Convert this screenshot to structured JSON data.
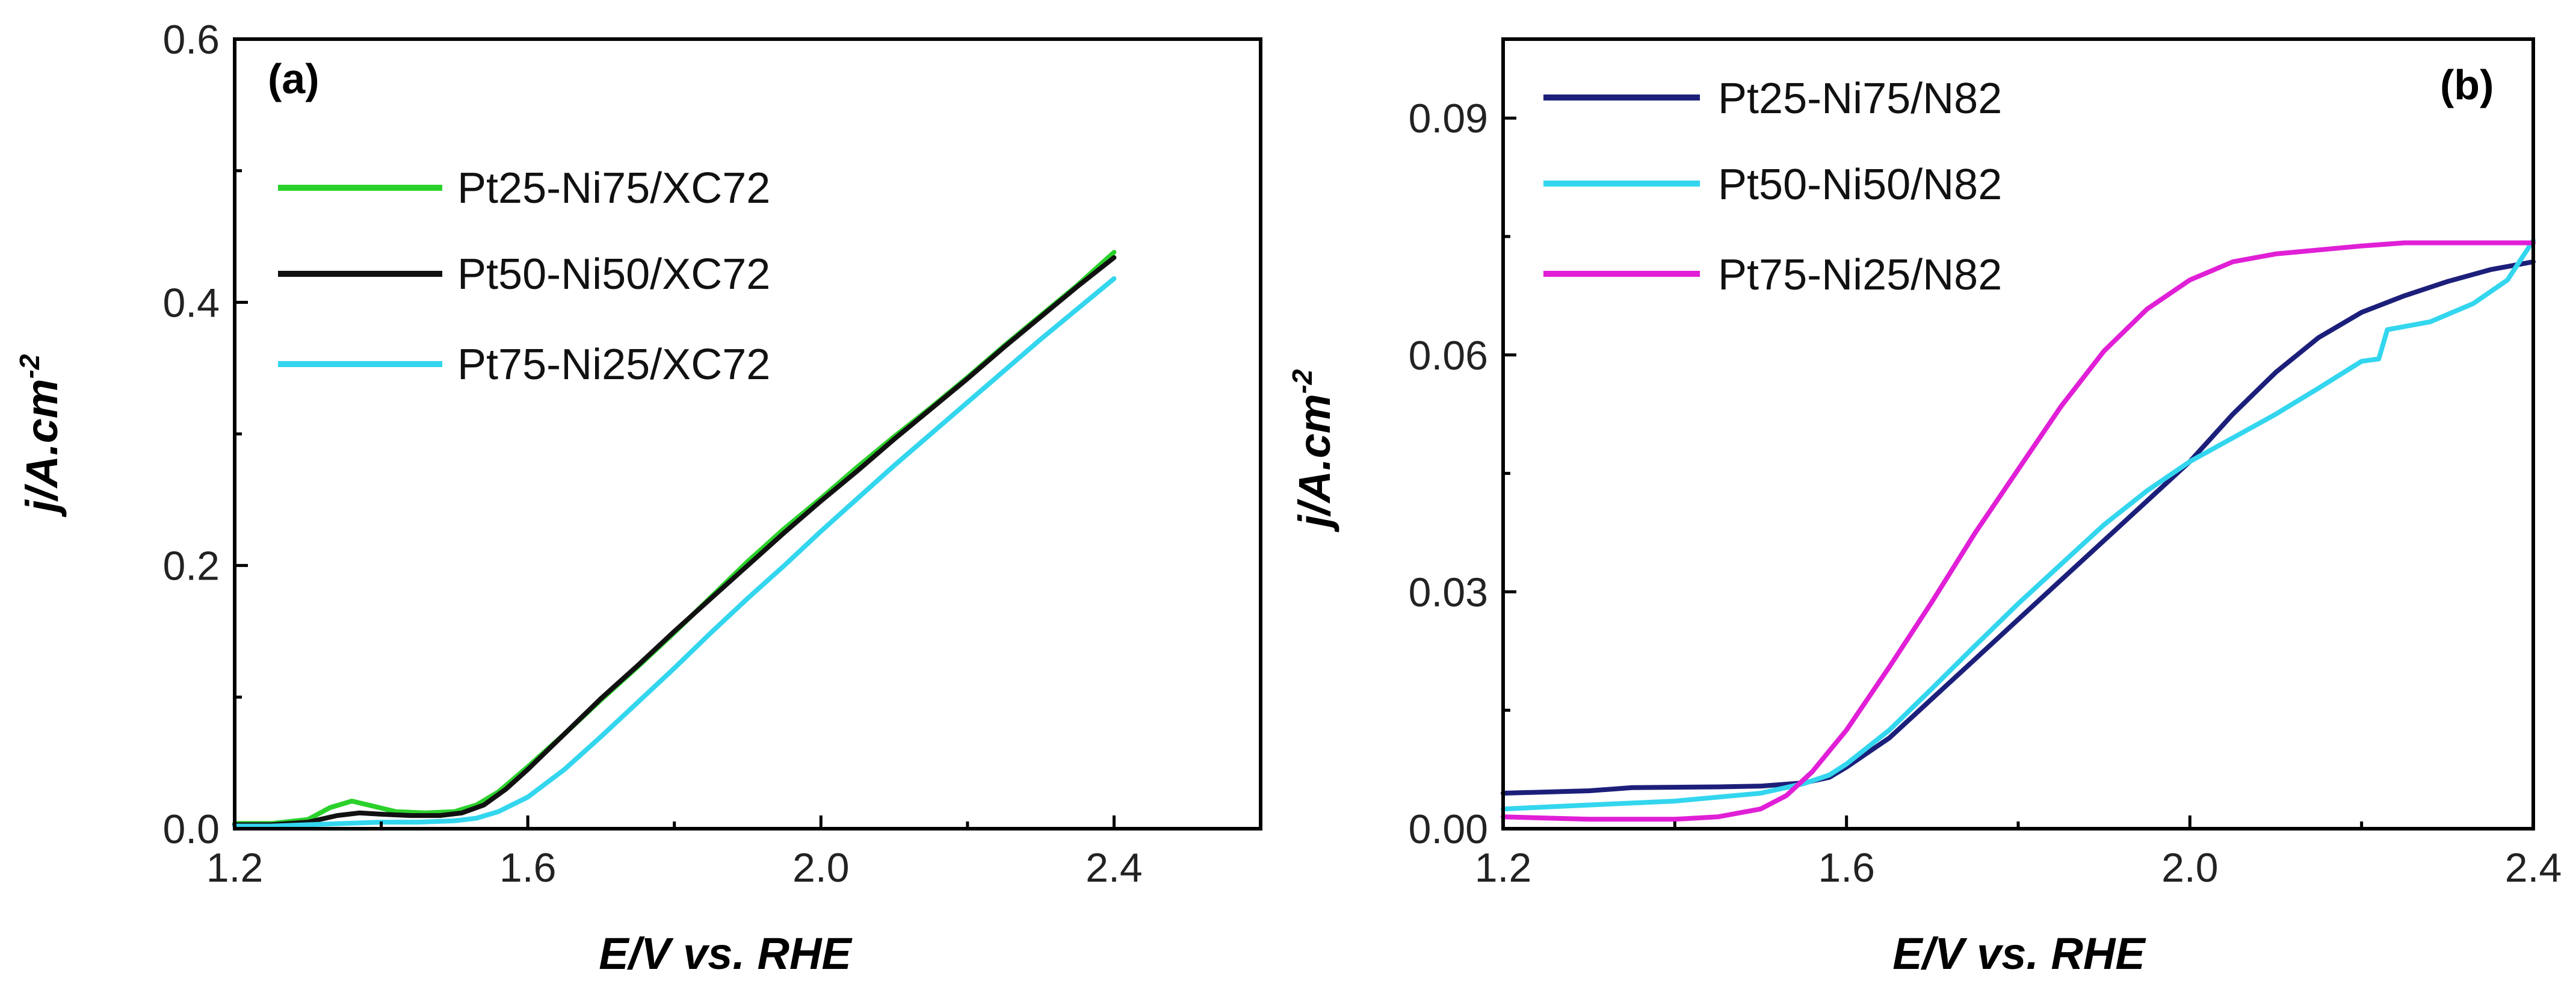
{
  "chart_data": [
    {
      "type": "line",
      "panel_label": "(a)",
      "xlabel": "E/V vs. RHE",
      "ylabel_main": "j/A.cm",
      "ylabel_sup": "-2",
      "xlim": [
        1.2,
        2.6
      ],
      "ylim": [
        0.0,
        0.6
      ],
      "xticks": [
        1.2,
        1.6,
        2.0,
        2.4
      ],
      "xtick_labels": [
        "1.2",
        "1.6",
        "2.0",
        "2.4"
      ],
      "yticks": [
        0.0,
        0.2,
        0.4,
        0.6
      ],
      "ytick_labels": [
        "0.0",
        "0.2",
        "0.4",
        "0.6"
      ],
      "legend_position": "top-left",
      "series": [
        {
          "name": "Pt25-Ni75/XC72",
          "color": "#2bd12b",
          "points": [
            [
              1.2,
              0.004
            ],
            [
              1.25,
              0.004
            ],
            [
              1.3,
              0.007
            ],
            [
              1.33,
              0.016
            ],
            [
              1.36,
              0.021
            ],
            [
              1.39,
              0.017
            ],
            [
              1.42,
              0.013
            ],
            [
              1.46,
              0.012
            ],
            [
              1.5,
              0.013
            ],
            [
              1.53,
              0.018
            ],
            [
              1.56,
              0.028
            ],
            [
              1.6,
              0.047
            ],
            [
              1.65,
              0.072
            ],
            [
              1.7,
              0.098
            ],
            [
              1.75,
              0.123
            ],
            [
              1.8,
              0.149
            ],
            [
              1.85,
              0.176
            ],
            [
              1.9,
              0.203
            ],
            [
              1.95,
              0.228
            ],
            [
              2.0,
              0.251
            ],
            [
              2.05,
              0.275
            ],
            [
              2.1,
              0.298
            ],
            [
              2.15,
              0.32
            ],
            [
              2.2,
              0.343
            ],
            [
              2.25,
              0.367
            ],
            [
              2.3,
              0.39
            ],
            [
              2.35,
              0.413
            ],
            [
              2.4,
              0.438
            ]
          ]
        },
        {
          "name": "Pt50-Ni50/XC72",
          "color": "#111111",
          "points": [
            [
              1.2,
              0.003
            ],
            [
              1.25,
              0.003
            ],
            [
              1.3,
              0.005
            ],
            [
              1.34,
              0.01
            ],
            [
              1.37,
              0.012
            ],
            [
              1.4,
              0.011
            ],
            [
              1.44,
              0.01
            ],
            [
              1.48,
              0.01
            ],
            [
              1.51,
              0.012
            ],
            [
              1.54,
              0.018
            ],
            [
              1.57,
              0.03
            ],
            [
              1.6,
              0.045
            ],
            [
              1.65,
              0.072
            ],
            [
              1.7,
              0.099
            ],
            [
              1.75,
              0.124
            ],
            [
              1.8,
              0.15
            ],
            [
              1.85,
              0.175
            ],
            [
              1.9,
              0.2
            ],
            [
              1.95,
              0.225
            ],
            [
              2.0,
              0.249
            ],
            [
              2.05,
              0.272
            ],
            [
              2.1,
              0.296
            ],
            [
              2.15,
              0.319
            ],
            [
              2.2,
              0.342
            ],
            [
              2.25,
              0.366
            ],
            [
              2.3,
              0.389
            ],
            [
              2.35,
              0.412
            ],
            [
              2.4,
              0.434
            ]
          ]
        },
        {
          "name": "Pt75-Ni25/XC72",
          "color": "#33d6ee",
          "points": [
            [
              1.2,
              0.002
            ],
            [
              1.25,
              0.002
            ],
            [
              1.3,
              0.003
            ],
            [
              1.35,
              0.004
            ],
            [
              1.4,
              0.005
            ],
            [
              1.45,
              0.005
            ],
            [
              1.5,
              0.006
            ],
            [
              1.53,
              0.008
            ],
            [
              1.56,
              0.013
            ],
            [
              1.6,
              0.024
            ],
            [
              1.65,
              0.045
            ],
            [
              1.7,
              0.07
            ],
            [
              1.75,
              0.096
            ],
            [
              1.8,
              0.122
            ],
            [
              1.85,
              0.149
            ],
            [
              1.9,
              0.175
            ],
            [
              1.95,
              0.2
            ],
            [
              2.0,
              0.226
            ],
            [
              2.05,
              0.251
            ],
            [
              2.1,
              0.276
            ],
            [
              2.15,
              0.3
            ],
            [
              2.2,
              0.324
            ],
            [
              2.25,
              0.348
            ],
            [
              2.3,
              0.372
            ],
            [
              2.35,
              0.395
            ],
            [
              2.4,
              0.418
            ]
          ]
        }
      ]
    },
    {
      "type": "line",
      "panel_label": "(b)",
      "xlabel": "E/V vs. RHE",
      "ylabel_main": "j/A.cm",
      "ylabel_sup": "-2",
      "xlim": [
        1.2,
        2.4
      ],
      "ylim": [
        0.0,
        0.1
      ],
      "xticks": [
        1.2,
        1.6,
        2.0,
        2.4
      ],
      "xtick_labels": [
        "1.2",
        "1.6",
        "2.0",
        "2.4"
      ],
      "yticks": [
        0.0,
        0.03,
        0.06,
        0.09
      ],
      "ytick_labels": [
        "0.00",
        "0.03",
        "0.06",
        "0.09"
      ],
      "legend_position": "top-left",
      "series": [
        {
          "name": "Pt25-Ni75/N82",
          "color": "#1c1f7a",
          "points": [
            [
              1.2,
              0.0045
            ],
            [
              1.3,
              0.0048
            ],
            [
              1.35,
              0.0052
            ],
            [
              1.45,
              0.0053
            ],
            [
              1.5,
              0.0054
            ],
            [
              1.55,
              0.0058
            ],
            [
              1.58,
              0.0065
            ],
            [
              1.6,
              0.0078
            ],
            [
              1.65,
              0.0115
            ],
            [
              1.7,
              0.0165
            ],
            [
              1.75,
              0.0215
            ],
            [
              1.8,
              0.0265
            ],
            [
              1.85,
              0.0315
            ],
            [
              1.9,
              0.0365
            ],
            [
              1.95,
              0.0415
            ],
            [
              2.0,
              0.0465
            ],
            [
              2.05,
              0.0525
            ],
            [
              2.1,
              0.0578
            ],
            [
              2.15,
              0.0622
            ],
            [
              2.2,
              0.0654
            ],
            [
              2.25,
              0.0675
            ],
            [
              2.3,
              0.0693
            ],
            [
              2.35,
              0.0708
            ],
            [
              2.4,
              0.0718
            ]
          ]
        },
        {
          "name": "Pt50-Ni50/N82",
          "color": "#33d6ee",
          "points": [
            [
              1.2,
              0.0025
            ],
            [
              1.3,
              0.003
            ],
            [
              1.4,
              0.0035
            ],
            [
              1.5,
              0.0045
            ],
            [
              1.55,
              0.0057
            ],
            [
              1.58,
              0.0068
            ],
            [
              1.6,
              0.0082
            ],
            [
              1.65,
              0.0125
            ],
            [
              1.7,
              0.0178
            ],
            [
              1.75,
              0.0232
            ],
            [
              1.8,
              0.0285
            ],
            [
              1.85,
              0.0335
            ],
            [
              1.9,
              0.0385
            ],
            [
              1.95,
              0.0428
            ],
            [
              2.0,
              0.0465
            ],
            [
              2.05,
              0.0495
            ],
            [
              2.1,
              0.0525
            ],
            [
              2.15,
              0.0558
            ],
            [
              2.2,
              0.0592
            ],
            [
              2.22,
              0.0595
            ],
            [
              2.23,
              0.0632
            ],
            [
              2.28,
              0.0642
            ],
            [
              2.33,
              0.0665
            ],
            [
              2.37,
              0.0695
            ],
            [
              2.4,
              0.0745
            ]
          ]
        },
        {
          "name": "Pt75-Ni25/N82",
          "color": "#e01fd6",
          "points": [
            [
              1.2,
              0.0015
            ],
            [
              1.3,
              0.0012
            ],
            [
              1.4,
              0.0012
            ],
            [
              1.45,
              0.0015
            ],
            [
              1.5,
              0.0025
            ],
            [
              1.53,
              0.0042
            ],
            [
              1.56,
              0.0072
            ],
            [
              1.6,
              0.0125
            ],
            [
              1.65,
              0.0205
            ],
            [
              1.7,
              0.0288
            ],
            [
              1.75,
              0.0375
            ],
            [
              1.8,
              0.0455
            ],
            [
              1.85,
              0.0535
            ],
            [
              1.9,
              0.0605
            ],
            [
              1.95,
              0.0658
            ],
            [
              2.0,
              0.0695
            ],
            [
              2.05,
              0.0718
            ],
            [
              2.1,
              0.0728
            ],
            [
              2.15,
              0.0733
            ],
            [
              2.2,
              0.0738
            ],
            [
              2.25,
              0.0742
            ],
            [
              2.3,
              0.0742
            ],
            [
              2.35,
              0.0742
            ],
            [
              2.4,
              0.0742
            ]
          ]
        }
      ]
    }
  ]
}
